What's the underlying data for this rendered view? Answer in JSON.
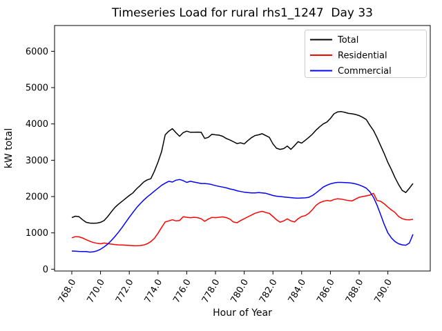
{
  "chart_data": {
    "type": "line",
    "title": "Timeseries Load for rural rhs1_1247  Day 33",
    "xlabel": "Hour of Year",
    "ylabel": "kW total",
    "grid": false,
    "legend_position": "upper right",
    "xlim": [
      766.8,
      792.95
    ],
    "ylim": [
      -50,
      6710
    ],
    "x_ticks": [
      768,
      770,
      772,
      774,
      776,
      778,
      780,
      782,
      784,
      786,
      788,
      790
    ],
    "x_tick_labels": [
      "768.0",
      "770.0",
      "772.0",
      "774.0",
      "776.0",
      "778.0",
      "780.0",
      "782.0",
      "784.0",
      "786.0",
      "788.0",
      "790.0"
    ],
    "y_ticks": [
      0,
      1000,
      2000,
      3000,
      4000,
      5000,
      6000
    ],
    "y_tick_labels": [
      "0",
      "1000",
      "2000",
      "3000",
      "4000",
      "5000",
      "6000"
    ],
    "x": [
      768.0,
      768.25,
      768.5,
      768.75,
      769.0,
      769.25,
      769.5,
      769.75,
      770.0,
      770.25,
      770.5,
      770.75,
      771.0,
      771.25,
      771.5,
      771.75,
      772.0,
      772.25,
      772.5,
      772.75,
      773.0,
      773.25,
      773.5,
      773.75,
      774.0,
      774.25,
      774.5,
      774.75,
      775.0,
      775.25,
      775.5,
      775.75,
      776.0,
      776.25,
      776.5,
      776.75,
      777.0,
      777.25,
      777.5,
      777.75,
      778.0,
      778.25,
      778.5,
      778.75,
      779.0,
      779.25,
      779.5,
      779.75,
      780.0,
      780.25,
      780.5,
      780.75,
      781.0,
      781.25,
      781.5,
      781.75,
      782.0,
      782.25,
      782.5,
      782.75,
      783.0,
      783.25,
      783.5,
      783.75,
      784.0,
      784.25,
      784.5,
      784.75,
      785.0,
      785.25,
      785.5,
      785.75,
      786.0,
      786.25,
      786.5,
      786.75,
      787.0,
      787.25,
      787.5,
      787.75,
      788.0,
      788.25,
      788.5,
      788.75,
      789.0,
      789.25,
      789.5,
      789.75,
      790.0,
      790.25,
      790.5,
      790.75,
      791.0,
      791.25,
      791.5,
      791.75
    ],
    "series": [
      {
        "name": "Total",
        "color": "#000000",
        "values": [
          1420,
          1460,
          1445,
          1360,
          1290,
          1270,
          1265,
          1270,
          1290,
          1340,
          1450,
          1580,
          1700,
          1790,
          1870,
          1950,
          2030,
          2100,
          2210,
          2300,
          2400,
          2460,
          2490,
          2700,
          2950,
          3240,
          3700,
          3800,
          3870,
          3760,
          3660,
          3760,
          3800,
          3770,
          3770,
          3775,
          3770,
          3600,
          3630,
          3715,
          3700,
          3690,
          3660,
          3600,
          3560,
          3510,
          3460,
          3480,
          3450,
          3540,
          3620,
          3680,
          3700,
          3730,
          3680,
          3630,
          3450,
          3330,
          3300,
          3320,
          3390,
          3300,
          3400,
          3510,
          3470,
          3550,
          3630,
          3720,
          3830,
          3920,
          4000,
          4050,
          4150,
          4280,
          4330,
          4340,
          4320,
          4290,
          4280,
          4260,
          4230,
          4180,
          4120,
          3960,
          3820,
          3620,
          3400,
          3180,
          2940,
          2740,
          2520,
          2330,
          2170,
          2110,
          2230,
          2360
        ]
      },
      {
        "name": "Residential",
        "color": "#ff0000",
        "values": [
          865,
          895,
          890,
          860,
          810,
          770,
          735,
          715,
          700,
          720,
          705,
          690,
          680,
          670,
          665,
          660,
          655,
          648,
          645,
          650,
          665,
          700,
          760,
          850,
          990,
          1150,
          1300,
          1330,
          1360,
          1330,
          1340,
          1445,
          1430,
          1415,
          1430,
          1420,
          1390,
          1320,
          1380,
          1425,
          1420,
          1430,
          1440,
          1420,
          1380,
          1300,
          1280,
          1340,
          1390,
          1440,
          1490,
          1540,
          1570,
          1595,
          1560,
          1535,
          1450,
          1360,
          1295,
          1330,
          1385,
          1330,
          1300,
          1390,
          1450,
          1475,
          1540,
          1640,
          1760,
          1830,
          1870,
          1890,
          1880,
          1920,
          1940,
          1930,
          1910,
          1890,
          1880,
          1930,
          1980,
          2000,
          2020,
          2040,
          2090,
          1890,
          1870,
          1800,
          1710,
          1630,
          1560,
          1450,
          1390,
          1365,
          1360,
          1375
        ]
      },
      {
        "name": "Commercial",
        "color": "#0000ff",
        "values": [
          500,
          495,
          490,
          487,
          485,
          470,
          480,
          505,
          550,
          615,
          690,
          790,
          900,
          1020,
          1150,
          1290,
          1430,
          1560,
          1690,
          1800,
          1900,
          1990,
          2070,
          2150,
          2230,
          2310,
          2370,
          2420,
          2400,
          2450,
          2470,
          2440,
          2390,
          2420,
          2400,
          2380,
          2360,
          2360,
          2350,
          2330,
          2300,
          2280,
          2260,
          2240,
          2210,
          2190,
          2160,
          2140,
          2120,
          2110,
          2100,
          2100,
          2110,
          2100,
          2090,
          2060,
          2030,
          2010,
          2000,
          1990,
          1980,
          1970,
          1960,
          1955,
          1960,
          1965,
          1980,
          2030,
          2100,
          2180,
          2260,
          2310,
          2350,
          2375,
          2390,
          2390,
          2385,
          2380,
          2370,
          2350,
          2320,
          2280,
          2230,
          2130,
          1980,
          1760,
          1500,
          1230,
          1000,
          860,
          760,
          700,
          670,
          660,
          720,
          960
        ]
      }
    ]
  }
}
